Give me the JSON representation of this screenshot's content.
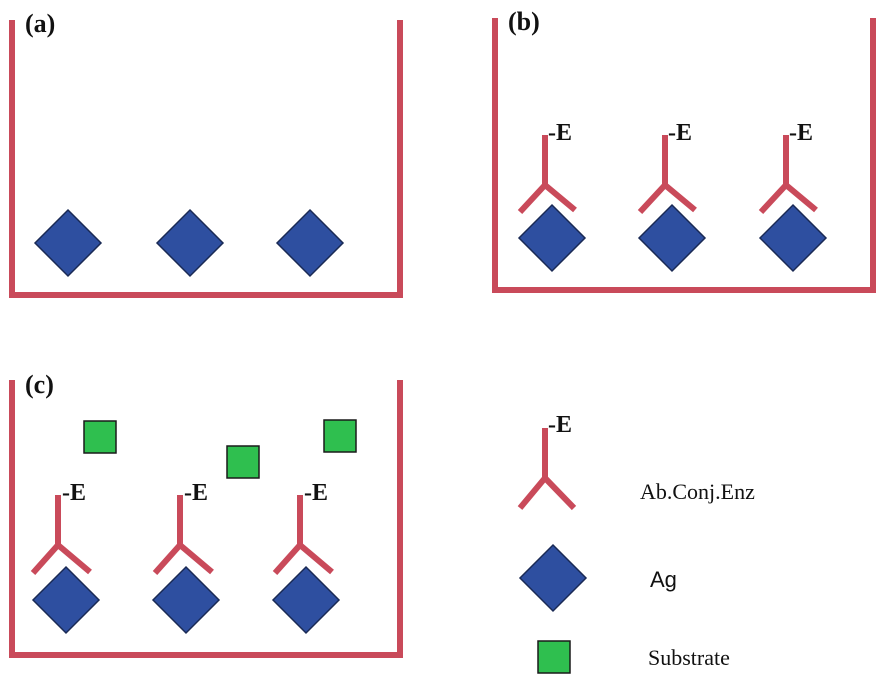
{
  "panels": [
    {
      "label": "(a)"
    },
    {
      "label": "(b)",
      "enzyme_labels": [
        "-E",
        "-E",
        "-E"
      ]
    },
    {
      "label": "(c)",
      "enzyme_labels": [
        "-E",
        "-E",
        "-E"
      ]
    }
  ],
  "legend": {
    "enzyme_label": "-E",
    "items": [
      {
        "label": "Ab.Conj.Enz"
      },
      {
        "label": "Ag"
      },
      {
        "label": "Substrate"
      }
    ]
  }
}
